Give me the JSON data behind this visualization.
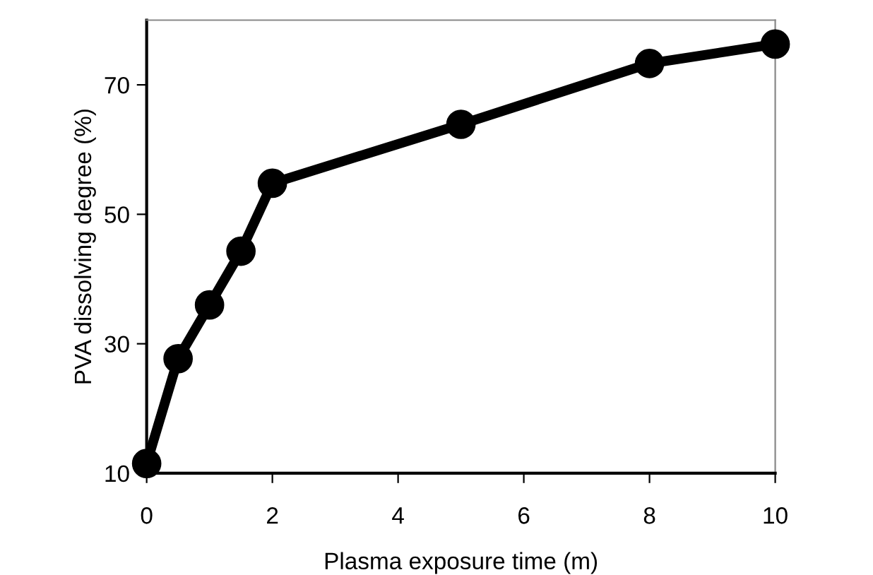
{
  "chart_data": {
    "type": "line",
    "xlabel": "Plasma exposure time (m)",
    "ylabel": "PVA dissolving degree (%)",
    "x": [
      0,
      0.5,
      1,
      1.5,
      2,
      5,
      8,
      10
    ],
    "series": [
      {
        "color": "#000000",
        "values": [
          11.5,
          27.7,
          36,
          44.3,
          54.8,
          63.9,
          73.3,
          76.3
        ]
      }
    ],
    "xlim": [
      0,
      10
    ],
    "ylim": [
      10,
      80
    ],
    "xticks": [
      0,
      2,
      4,
      6,
      8,
      10
    ],
    "yticks": [
      10,
      30,
      50,
      70
    ],
    "marker": "circle",
    "line_style": "solid",
    "grid": false,
    "legend": false
  }
}
